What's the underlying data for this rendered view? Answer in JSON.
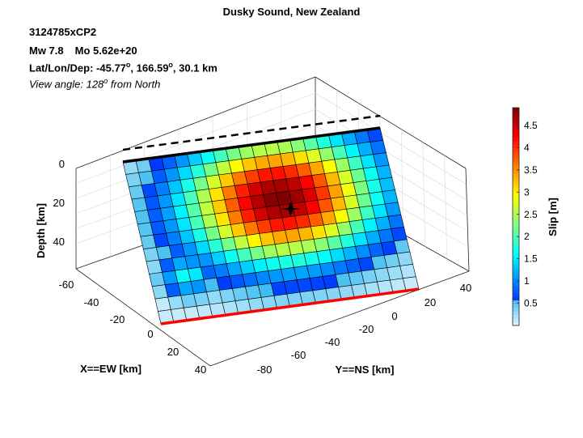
{
  "header": {
    "title": "Dusky Sound, New Zealand",
    "event_id": "3124785xCP2",
    "magnitude": "Mw 7.8",
    "moment": "Mo 5.62e+20",
    "location_prefix": "Lat/Lon/Dep: ",
    "lat": "-45.77",
    "lon": "166.59",
    "dep": "30.1 km",
    "degree_symbol": "o",
    "view_prefix": "View angle: 128",
    "view_suffix": " from North"
  },
  "chart_data": {
    "type": "heatmap",
    "title": "Dusky Sound, New Zealand",
    "view_angle_deg": 128,
    "axes": {
      "z": {
        "label": "Depth [km]",
        "ticks": [
          "0",
          "20",
          "40"
        ],
        "range": [
          0,
          50
        ]
      },
      "x": {
        "label": "X==EW [km]",
        "ticks": [
          "-60",
          "-40",
          "-20",
          "0",
          "20",
          "40"
        ],
        "range": [
          -70,
          50
        ]
      },
      "y": {
        "label": "Y==NS [km]",
        "ticks": [
          "-80",
          "-60",
          "-40",
          "-20",
          "0",
          "20",
          "40"
        ],
        "range": [
          -90,
          50
        ]
      }
    },
    "grid": true,
    "colorbar": {
      "label": "Slip [m]",
      "ticks": [
        "0.5",
        "1",
        "1.5",
        "2",
        "2.5",
        "3",
        "3.5",
        "4",
        "4.5"
      ],
      "range": [
        0,
        4.9
      ],
      "colormap": "jet",
      "position": "right"
    },
    "fault": {
      "columns": 20,
      "rows": 13,
      "slip_center_col": 11.2,
      "slip_center_row": 4.5,
      "peak_slip": 4.9,
      "min_slip": 0.1,
      "secondary_patch_center_col": 2.8,
      "secondary_patch_center_row": 9.5,
      "secondary_patch_slip": 1.7,
      "top_edge_color": "#000000",
      "bottom_edge_color": "#ff0000",
      "hypocenter_marker": "black star"
    }
  }
}
